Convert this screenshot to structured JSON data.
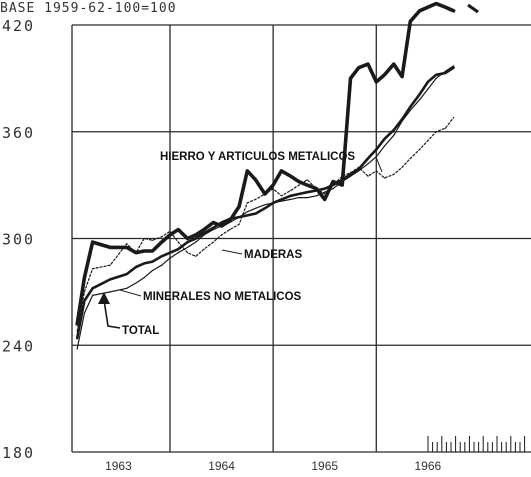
{
  "header": {
    "text": "BASE 1959-62-100=100"
  },
  "chart_data": {
    "type": "line",
    "title": "",
    "xlabel": "",
    "ylabel": "",
    "ylim": [
      180,
      420
    ],
    "yticks": [
      "420",
      "360",
      "300",
      "240",
      "180"
    ],
    "xticks": [
      {
        "label": "1963",
        "x": 1963.0
      },
      {
        "label": "1964",
        "x": 1964.0
      },
      {
        "label": "1965",
        "x": 1965.0
      },
      {
        "label": "1966",
        "x": 1966.0
      }
    ],
    "xlim": [
      1962.55,
      1967.0
    ],
    "grid": true,
    "series": [
      {
        "name": "HIERRO Y ARTICULOS METALICOS",
        "style": "thick",
        "x": [
          1962.6,
          1962.67,
          1962.75,
          1962.92,
          1963.08,
          1963.17,
          1963.25,
          1963.33,
          1963.42,
          1963.5,
          1963.58,
          1963.67,
          1963.75,
          1963.83,
          1963.92,
          1964.0,
          1964.08,
          1964.17,
          1964.25,
          1964.33,
          1964.42,
          1964.5,
          1964.58,
          1964.67,
          1964.75,
          1964.83,
          1964.92,
          1965.0,
          1965.08,
          1965.17,
          1965.25,
          1965.33,
          1965.42,
          1965.5,
          1965.58,
          1965.67,
          1965.75,
          1965.83,
          1965.92,
          1966.0,
          1966.08,
          1966.17,
          1966.25
        ],
        "values": [
          252,
          278,
          298,
          295,
          295,
          292,
          293,
          293,
          298,
          302,
          305,
          300,
          302,
          305,
          309,
          307,
          310,
          318,
          338,
          333,
          325,
          330,
          338,
          335,
          332,
          330,
          328,
          322,
          332,
          330,
          390,
          396,
          398,
          388,
          392,
          398,
          391,
          422,
          428,
          430,
          432,
          430,
          428
        ]
      },
      {
        "name": "MADERAS",
        "style": "dotted",
        "x": [
          1962.6,
          1962.67,
          1962.75,
          1962.92,
          1963.08,
          1963.17,
          1963.25,
          1963.33,
          1963.42,
          1963.5,
          1963.58,
          1963.67,
          1963.75,
          1963.83,
          1963.92,
          1964.0,
          1964.08,
          1964.17,
          1964.25,
          1964.33,
          1964.42,
          1964.5,
          1964.58,
          1964.67,
          1964.75,
          1964.83,
          1964.92,
          1965.0,
          1965.08,
          1965.17,
          1965.25,
          1965.33,
          1965.42,
          1965.5,
          1965.58,
          1965.67,
          1965.75,
          1965.83,
          1965.92,
          1966.0,
          1966.08,
          1966.17,
          1966.25
        ],
        "values": [
          248,
          270,
          283,
          285,
          297,
          292,
          300,
          299,
          301,
          304,
          298,
          292,
          290,
          294,
          298,
          302,
          305,
          308,
          320,
          322,
          325,
          328,
          324,
          327,
          330,
          333,
          328,
          325,
          330,
          335,
          337,
          340,
          335,
          338,
          334,
          336,
          340,
          345,
          350,
          355,
          360,
          362,
          368
        ]
      },
      {
        "name": "MINERALES NO METALICOS",
        "style": "thin",
        "x": [
          1962.6,
          1962.67,
          1962.75,
          1962.92,
          1963.08,
          1963.17,
          1963.25,
          1963.33,
          1963.42,
          1963.5,
          1963.58,
          1963.67,
          1963.75,
          1963.83,
          1963.92,
          1964.0,
          1964.08,
          1964.17,
          1964.25,
          1964.33,
          1964.42,
          1964.5,
          1964.58,
          1964.67,
          1964.75,
          1964.83,
          1964.92,
          1965.0,
          1965.08,
          1965.17,
          1965.25,
          1965.33,
          1965.42,
          1965.5,
          1965.58,
          1965.67,
          1965.75,
          1965.83,
          1965.92,
          1966.0,
          1966.08,
          1966.17,
          1966.25
        ],
        "values": [
          238,
          258,
          268,
          270,
          272,
          275,
          278,
          282,
          285,
          289,
          292,
          295,
          298,
          302,
          305,
          307,
          309,
          312,
          315,
          317,
          319,
          320,
          321,
          322,
          323,
          323,
          324,
          326,
          328,
          332,
          335,
          338,
          342,
          346,
          352,
          358,
          366,
          372,
          378,
          384,
          390,
          394,
          397
        ]
      },
      {
        "name": "TOTAL",
        "style": "medium",
        "x": [
          1962.6,
          1962.67,
          1962.75,
          1962.92,
          1963.08,
          1963.17,
          1963.25,
          1963.33,
          1963.42,
          1963.5,
          1963.58,
          1963.67,
          1963.75,
          1963.83,
          1963.92,
          1964.0,
          1964.08,
          1964.17,
          1964.25,
          1964.33,
          1964.42,
          1964.5,
          1964.58,
          1964.67,
          1964.75,
          1964.83,
          1964.92,
          1965.0,
          1965.08,
          1965.17,
          1965.25,
          1965.33,
          1965.42,
          1965.5,
          1965.58,
          1965.67,
          1965.75,
          1965.83,
          1965.92,
          1966.0,
          1966.08,
          1966.17,
          1966.25
        ],
        "values": [
          244,
          265,
          272,
          277,
          280,
          284,
          286,
          287,
          290,
          292,
          294,
          298,
          300,
          303,
          306,
          309,
          311,
          312,
          313,
          314,
          317,
          320,
          322,
          324,
          325,
          326,
          327,
          328,
          330,
          333,
          336,
          339,
          345,
          350,
          356,
          361,
          367,
          374,
          381,
          388,
          392,
          393,
          396
        ]
      }
    ],
    "labels": [
      {
        "text": "HIERRO Y ARTICULOS METALICOS",
        "series": 0
      },
      {
        "text": "MADERAS",
        "series": 1
      },
      {
        "text": "MINERALES NO METALICOS",
        "series": 2
      },
      {
        "text": "TOTAL",
        "series": 3
      }
    ]
  },
  "colors": {
    "ink": "#1a1a1a",
    "grid": "#2a2a2a"
  }
}
